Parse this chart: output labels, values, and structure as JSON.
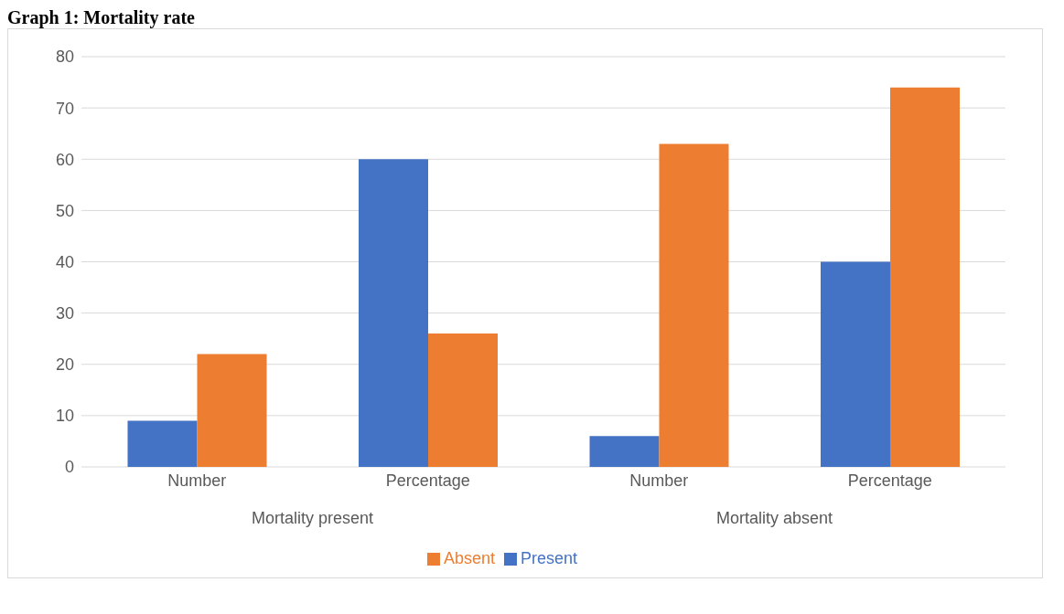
{
  "chart_data": {
    "type": "bar",
    "title": "Graph 1: Mortality rate",
    "categories": [
      "Number",
      "Percentage",
      "Number",
      "Percentage"
    ],
    "annotations": [
      "Mortality present",
      "Mortality absent"
    ],
    "series": [
      {
        "name": "Present",
        "color": "#4472c4",
        "values": [
          9,
          60,
          6,
          40
        ]
      },
      {
        "name": "Absent",
        "color": "#ed7d31",
        "values": [
          22,
          26,
          63,
          74
        ]
      }
    ],
    "ylim": [
      0,
      80
    ],
    "yticks": [
      0,
      10,
      20,
      30,
      40,
      50,
      60,
      70,
      80
    ],
    "grid": "y",
    "legend": "bottom"
  }
}
